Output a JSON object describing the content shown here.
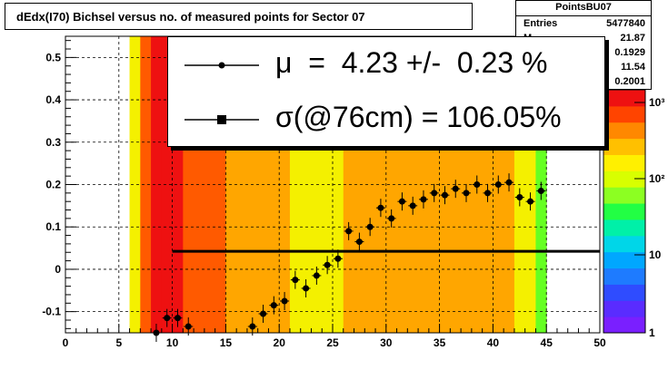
{
  "title": "dEdx(I70) Bichsel versus no. of measured points for Sector 07",
  "stats": {
    "name": "PointsBU07",
    "rows": [
      {
        "label": "Entries",
        "value": "5477840"
      },
      {
        "label": "M",
        "value": "21.87"
      },
      {
        "label": "",
        "value": "0.1929"
      },
      {
        "label": "",
        "value": "11.54"
      },
      {
        "label": "",
        "value": "0.2001"
      }
    ]
  },
  "legend": {
    "line1": "μ  =  4.23 +/-  0.23 %",
    "line2": "σ(@76cm) = 106.05%"
  },
  "colors": {
    "points": "#000000",
    "fit_line": "#000000"
  },
  "chart_data": {
    "type": "heatmap",
    "xlim": [
      0,
      50
    ],
    "ylim": [
      -0.15,
      0.55
    ],
    "x_ticks": [
      "0",
      "5",
      "10",
      "15",
      "20",
      "25",
      "30",
      "35",
      "40",
      "45",
      "50"
    ],
    "y_ticks": [
      "-0.1",
      "0",
      "0.1",
      "0.2",
      "0.3",
      "0.4",
      "0.5"
    ],
    "z_scale": "log",
    "z_ticks": [
      "1",
      "10",
      "10²",
      "10³"
    ],
    "grid": true,
    "heatmap_columns": [
      {
        "x": 6,
        "intensity": "medium"
      },
      {
        "x": 7,
        "intensity": "high"
      },
      {
        "x": 8,
        "intensity": "very-high"
      },
      {
        "x": 9,
        "intensity": "very-high"
      },
      {
        "x": 10,
        "intensity": "very-high"
      },
      {
        "x": 11,
        "intensity": "high"
      },
      {
        "x": 12,
        "intensity": "high"
      },
      {
        "x": 13,
        "intensity": "high"
      },
      {
        "x": 14,
        "intensity": "high"
      },
      {
        "x": 15,
        "intensity": "medium-high"
      },
      {
        "x": 16,
        "intensity": "medium-high"
      },
      {
        "x": 17,
        "intensity": "medium-high"
      },
      {
        "x": 18,
        "intensity": "medium-high"
      },
      {
        "x": 19,
        "intensity": "medium-high"
      },
      {
        "x": 20,
        "intensity": "medium-high"
      },
      {
        "x": 21,
        "intensity": "medium"
      },
      {
        "x": 22,
        "intensity": "medium"
      },
      {
        "x": 23,
        "intensity": "medium"
      },
      {
        "x": 24,
        "intensity": "medium"
      },
      {
        "x": 25,
        "intensity": "medium"
      },
      {
        "x": 26,
        "intensity": "medium-high"
      },
      {
        "x": 27,
        "intensity": "medium-high"
      },
      {
        "x": 28,
        "intensity": "medium-high"
      },
      {
        "x": 29,
        "intensity": "medium-high"
      },
      {
        "x": 30,
        "intensity": "medium-high"
      },
      {
        "x": 31,
        "intensity": "medium-high"
      },
      {
        "x": 32,
        "intensity": "medium-high"
      },
      {
        "x": 33,
        "intensity": "medium-high"
      },
      {
        "x": 34,
        "intensity": "medium-high"
      },
      {
        "x": 35,
        "intensity": "medium-high"
      },
      {
        "x": 36,
        "intensity": "medium-high"
      },
      {
        "x": 37,
        "intensity": "medium-high"
      },
      {
        "x": 38,
        "intensity": "medium-high"
      },
      {
        "x": 39,
        "intensity": "medium-high"
      },
      {
        "x": 40,
        "intensity": "medium-high"
      },
      {
        "x": 41,
        "intensity": "medium-high"
      },
      {
        "x": 42,
        "intensity": "medium"
      },
      {
        "x": 43,
        "intensity": "medium"
      },
      {
        "x": 44,
        "intensity": "low"
      }
    ],
    "series": [
      {
        "type": "scatter",
        "x": [
          8.5,
          9.5,
          10.5,
          11.5,
          17.5,
          18.5,
          19.5,
          20.5,
          21.5,
          22.5,
          23.5,
          24.5,
          25.5,
          26.5,
          27.5,
          28.5,
          29.5,
          30.5,
          31.5,
          32.5,
          33.5,
          34.5,
          35.5,
          36.5,
          37.5,
          38.5,
          39.5,
          40.5,
          41.5,
          42.5,
          43.5,
          44.5
        ],
        "y": [
          -0.15,
          -0.115,
          -0.115,
          -0.135,
          -0.135,
          -0.105,
          -0.085,
          -0.075,
          -0.025,
          -0.045,
          -0.015,
          0.01,
          0.025,
          0.09,
          0.065,
          0.1,
          0.145,
          0.12,
          0.16,
          0.15,
          0.165,
          0.18,
          0.175,
          0.19,
          0.18,
          0.2,
          0.18,
          0.2,
          0.205,
          0.17,
          0.16,
          0.185
        ]
      },
      {
        "type": "line",
        "x": [
          10,
          50
        ],
        "y": [
          0.0423,
          0.0423
        ]
      }
    ]
  }
}
